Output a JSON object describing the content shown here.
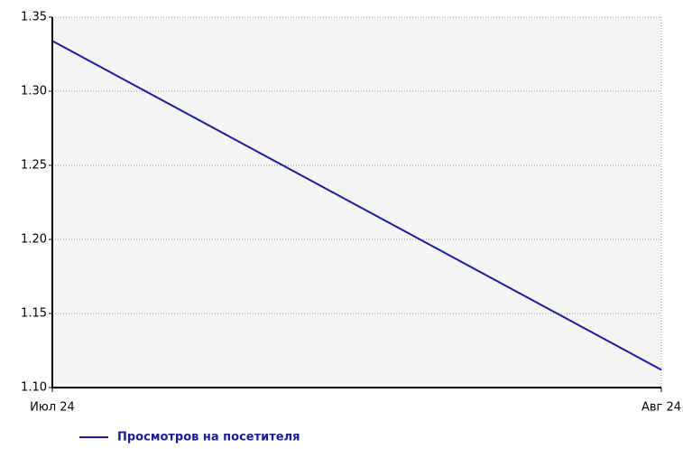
{
  "chart_data": {
    "type": "line",
    "x": [
      "Июл 24",
      "Авг 24"
    ],
    "series": [
      {
        "name": "Просмотров на посетителя",
        "color": "#1c1c96",
        "values": [
          1.334,
          1.112
        ]
      }
    ],
    "ylim": [
      1.1,
      1.35
    ],
    "yticks": [
      {
        "value": 1.1,
        "label": "1.10"
      },
      1.15,
      {
        "value": 1.2,
        "label": "1.20"
      },
      1.25,
      {
        "value": 1.3,
        "label": "1.30"
      },
      1.35
    ],
    "grid": true
  }
}
